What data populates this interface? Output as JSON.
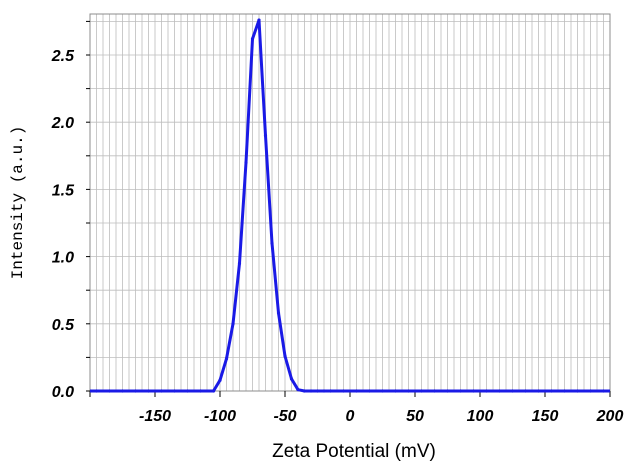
{
  "chart_data": {
    "type": "line",
    "title": "",
    "xlabel": "Zeta Potential (mV)",
    "ylabel": "Intensity (a.u.)",
    "xlim": [
      -200,
      200
    ],
    "ylim": [
      0,
      2.8
    ],
    "grid": true,
    "legend": "none",
    "x_ticks": [
      -150,
      -100,
      -50,
      0,
      50,
      100,
      150,
      200
    ],
    "x_tick_labels": [
      "-150",
      "-100",
      "-50",
      "0",
      "50",
      "100",
      "150",
      "200"
    ],
    "y_ticks": [
      0.0,
      0.5,
      1.0,
      1.5,
      2.0,
      2.5
    ],
    "y_tick_labels": [
      "0.0",
      "0.5",
      "1.0",
      "1.5",
      "2.0",
      "2.5"
    ],
    "series": [
      {
        "color": "#1a1ae6",
        "x": [
          -205,
          -195,
          -185,
          -175,
          -165,
          -155,
          -145,
          -135,
          -125,
          -115,
          -105,
          -100,
          -95,
          -90,
          -85,
          -80,
          -75,
          -70,
          -65,
          -60,
          -55,
          -50,
          -45,
          -40,
          -35,
          -30,
          -25,
          -20,
          -15,
          -5,
          5,
          15,
          25,
          35,
          45,
          55,
          65,
          75,
          85,
          95,
          105,
          115,
          125,
          135,
          145,
          155,
          165,
          175,
          185,
          195,
          205
        ],
        "y": [
          0,
          0,
          0,
          0,
          0,
          0,
          0,
          0,
          0,
          0,
          0,
          0.08,
          0.24,
          0.5,
          0.95,
          1.7,
          2.62,
          2.76,
          1.9,
          1.1,
          0.58,
          0.26,
          0.09,
          0.01,
          0,
          0,
          0,
          0,
          0,
          0,
          0,
          0,
          0,
          0,
          0,
          0,
          0,
          0,
          0,
          0,
          0,
          0,
          0,
          0,
          0,
          0,
          0,
          0,
          0,
          0,
          0
        ]
      }
    ]
  },
  "colors": {
    "line": "#1a1ae6",
    "grid": "#bdbdbd",
    "axis": "#8c8c8c"
  }
}
